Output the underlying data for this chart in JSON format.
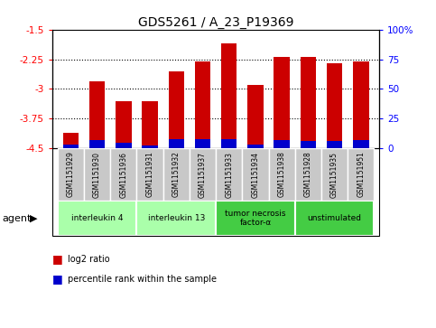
{
  "title": "GDS5261 / A_23_P19369",
  "samples": [
    "GSM1151929",
    "GSM1151930",
    "GSM1151936",
    "GSM1151931",
    "GSM1151932",
    "GSM1151937",
    "GSM1151933",
    "GSM1151934",
    "GSM1151938",
    "GSM1151928",
    "GSM1151935",
    "GSM1151951"
  ],
  "log2_ratio": [
    -4.1,
    -2.8,
    -3.3,
    -3.3,
    -2.55,
    -2.3,
    -1.85,
    -2.9,
    -2.2,
    -2.2,
    -2.35,
    -2.3
  ],
  "percentile_rank": [
    3,
    7,
    5,
    2,
    8,
    8,
    8,
    3,
    7,
    6,
    6,
    7
  ],
  "ylim": [
    -4.5,
    -1.5
  ],
  "yticks": [
    -4.5,
    -3.75,
    -3.0,
    -2.25,
    -1.5
  ],
  "ytick_labels": [
    "-4.5",
    "-3.75",
    "-3",
    "-2.25",
    "-1.5"
  ],
  "y2ticks_pct": [
    0,
    25,
    50,
    75,
    100
  ],
  "y2tick_labels": [
    "0",
    "25",
    "50",
    "75",
    "100%"
  ],
  "bar_width": 0.6,
  "red_color": "#cc0000",
  "blue_color": "#0000cc",
  "bg_color_sample": "#c8c8c8",
  "agent_groups": [
    {
      "label": "interleukin 4",
      "start": 0,
      "end": 2,
      "color": "#aaffaa"
    },
    {
      "label": "interleukin 13",
      "start": 3,
      "end": 5,
      "color": "#aaffaa"
    },
    {
      "label": "tumor necrosis\nfactor-α",
      "start": 6,
      "end": 8,
      "color": "#44cc44"
    },
    {
      "label": "unstimulated",
      "start": 9,
      "end": 11,
      "color": "#44cc44"
    }
  ],
  "legend_red": "log2 ratio",
  "legend_blue": "percentile rank within the sample",
  "title_fontsize": 10
}
